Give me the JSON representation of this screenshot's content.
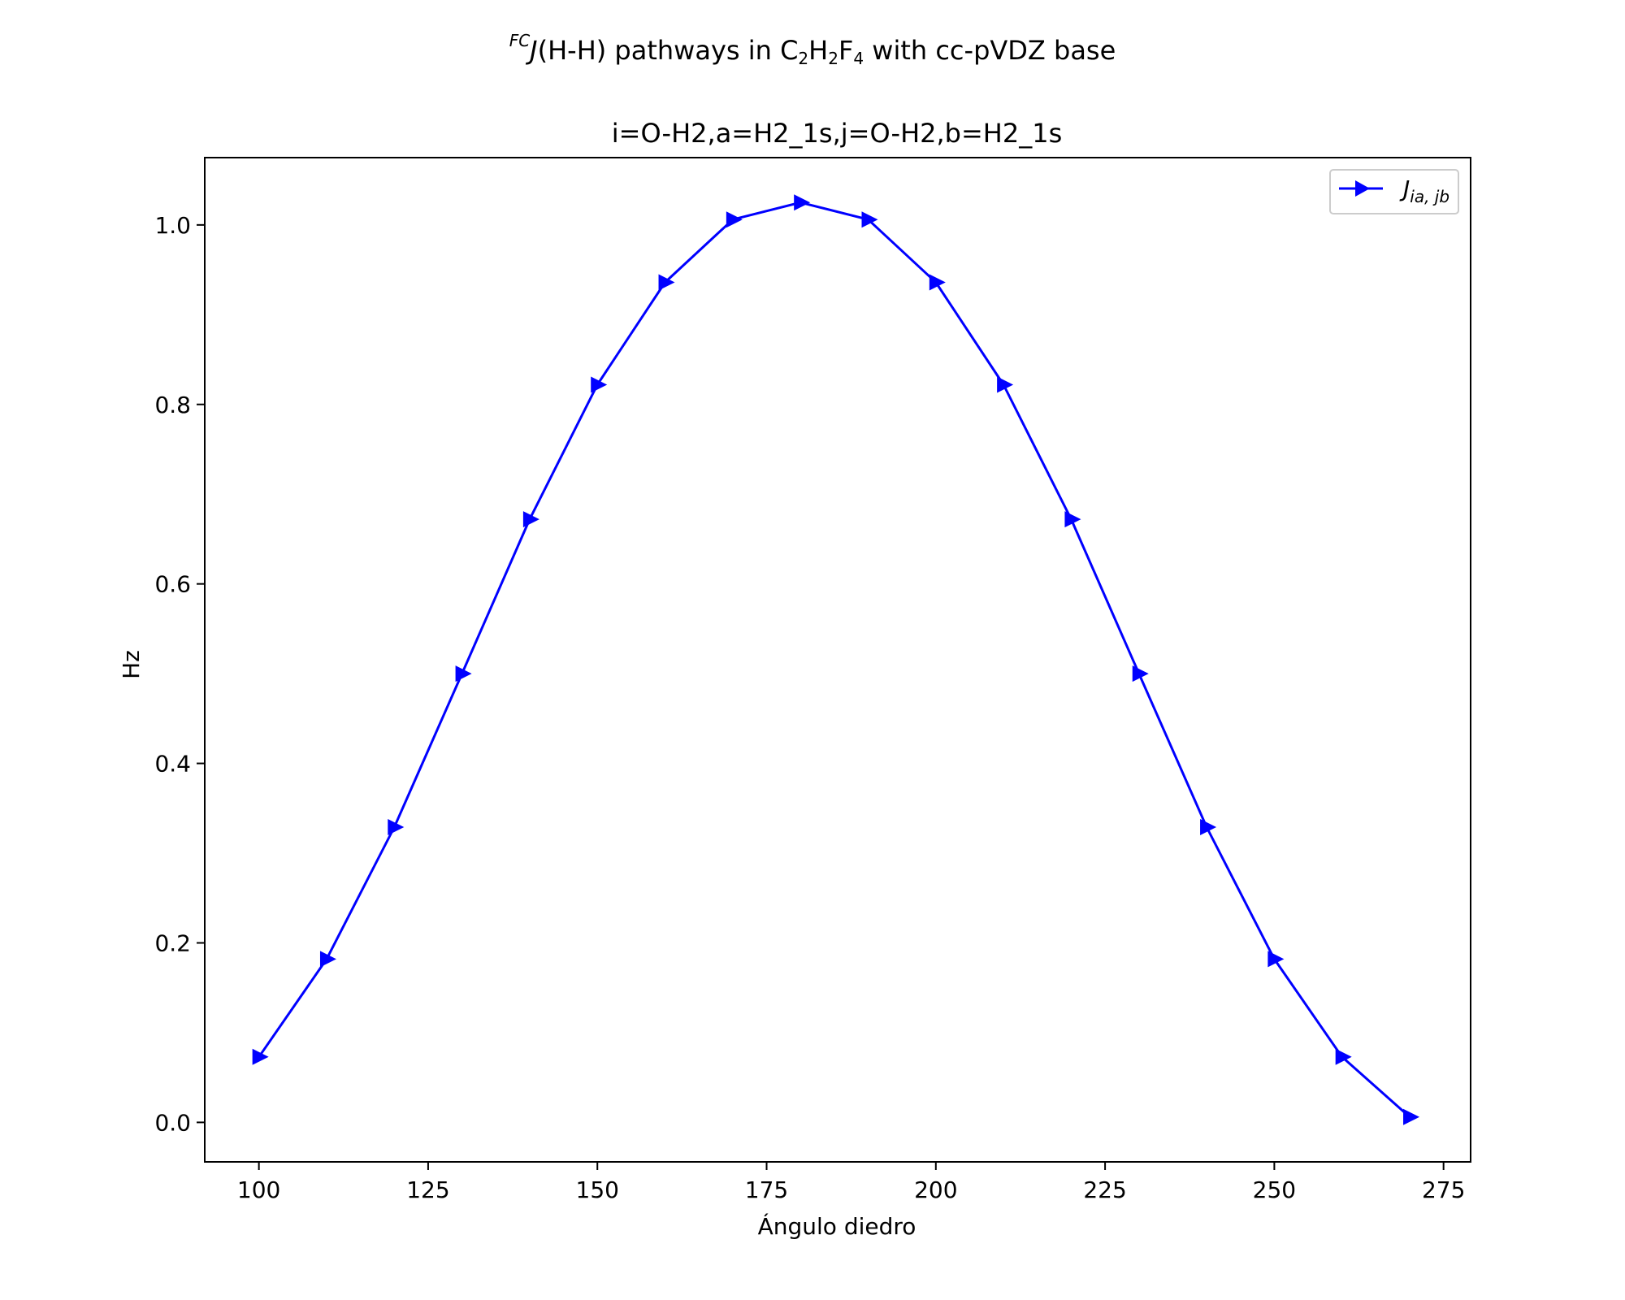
{
  "figure": {
    "title_parts": {
      "sup": "FC",
      "j": "J",
      "hh": "(H-H) pathways in C",
      "s1": "2",
      "h": "H",
      "s2": "2",
      "f": "F",
      "s3": "4",
      "rest": " with cc-pVDZ base"
    }
  },
  "chart_data": {
    "type": "line",
    "title": "i=O-H2,a=H2_1s,j=O-H2,b=H2_1s",
    "xlabel": "Ángulo diedro",
    "ylabel": "Hz",
    "xlim": [
      92,
      279
    ],
    "ylim": [
      -0.044,
      1.075
    ],
    "x_ticks": [
      100,
      125,
      150,
      175,
      200,
      225,
      250,
      275
    ],
    "y_ticks": [
      0.0,
      0.2,
      0.4,
      0.6,
      0.8,
      1.0
    ],
    "x_tick_labels": [
      "100",
      "125",
      "150",
      "175",
      "200",
      "225",
      "250",
      "275"
    ],
    "y_tick_labels": [
      "0.0",
      "0.2",
      "0.4",
      "0.6",
      "0.8",
      "1.0"
    ],
    "grid": false,
    "legend_position": "top-right",
    "series": [
      {
        "name_main": "J",
        "name_sub": "ia, jb",
        "color": "#0000ff",
        "marker": "triangle-right",
        "x": [
          100,
          110,
          120,
          130,
          140,
          150,
          160,
          170,
          180,
          190,
          200,
          210,
          220,
          230,
          240,
          250,
          260,
          270
        ],
        "y": [
          0.073,
          0.182,
          0.329,
          0.5,
          0.672,
          0.822,
          0.936,
          1.006,
          1.025,
          1.006,
          0.936,
          0.822,
          0.672,
          0.5,
          0.329,
          0.182,
          0.073,
          0.006
        ]
      }
    ]
  }
}
